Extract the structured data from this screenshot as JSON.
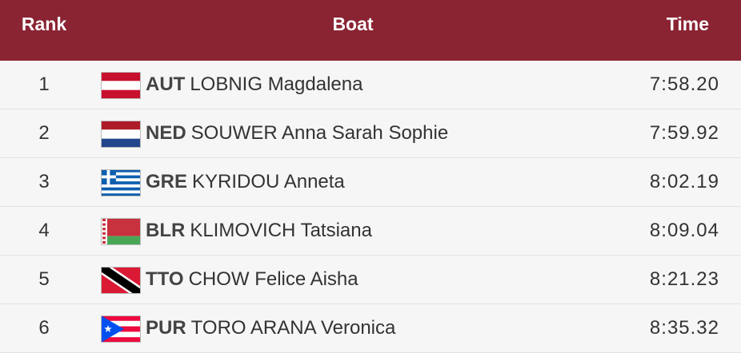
{
  "header": {
    "rank": "Rank",
    "boat": "Boat",
    "time": "Time"
  },
  "rows": [
    {
      "rank": 1,
      "country": "AUT",
      "name": "LOBNIG Magdalena",
      "time": "7:58.20"
    },
    {
      "rank": 2,
      "country": "NED",
      "name": "SOUWER Anna Sarah Sophie",
      "time": "7:59.92"
    },
    {
      "rank": 3,
      "country": "GRE",
      "name": "KYRIDOU Anneta",
      "time": "8:02.19"
    },
    {
      "rank": 4,
      "country": "BLR",
      "name": "KLIMOVICH Tatsiana",
      "time": "8:09.04"
    },
    {
      "rank": 5,
      "country": "TTO",
      "name": "CHOW Felice Aisha",
      "time": "8:21.23"
    },
    {
      "rank": 6,
      "country": "PUR",
      "name": "TORO ARANA Veronica",
      "time": "8:35.32"
    }
  ]
}
